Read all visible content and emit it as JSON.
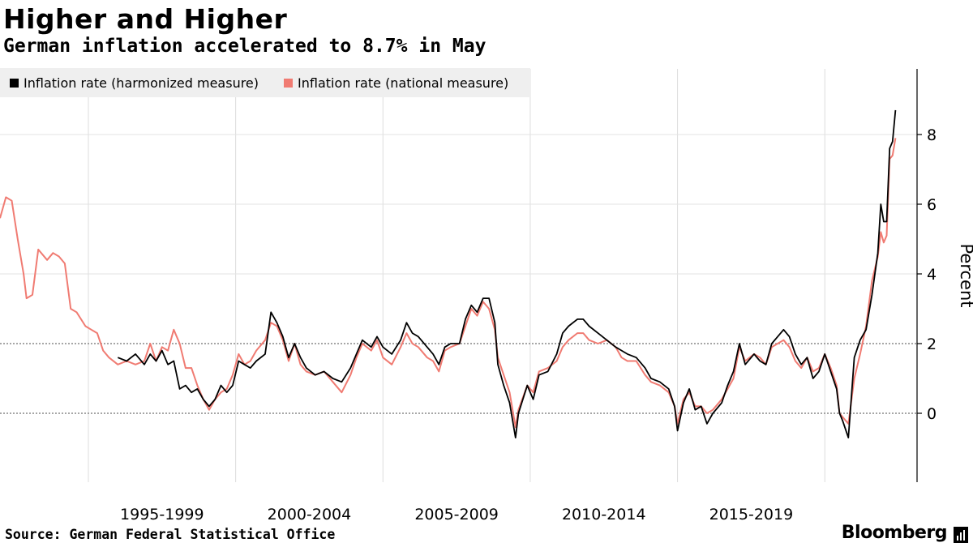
{
  "chart_data": {
    "type": "line",
    "title": "Higher and Higher",
    "subtitle": "German inflation accelerated to 8.7% in May",
    "ylabel": "Percent",
    "ylim": [
      -2,
      10
    ],
    "xlim": [
      1992.0,
      2022.6
    ],
    "yticks": [
      0,
      2,
      4,
      6,
      8
    ],
    "ytick_labels": [
      "0",
      "2",
      "4",
      "6",
      "8"
    ],
    "x_period_labels": [
      {
        "label": "1995-1999",
        "x": 1997.5
      },
      {
        "label": "2000-2004",
        "x": 2002.5
      },
      {
        "label": "2005-2009",
        "x": 2007.5
      },
      {
        "label": "2010-2014",
        "x": 2012.5
      },
      {
        "label": "2015-2019",
        "x": 2017.5
      }
    ],
    "x_gridlines": [
      1995,
      2000,
      2005,
      2010,
      2015,
      2020
    ],
    "grid": true,
    "legend_position": "top-left",
    "series": [
      {
        "name": "Inflation rate (harmonized measure)",
        "color": "#000000",
        "points": [
          [
            1996.0,
            1.6
          ],
          [
            1996.3,
            1.5
          ],
          [
            1996.6,
            1.7
          ],
          [
            1996.9,
            1.4
          ],
          [
            1997.1,
            1.7
          ],
          [
            1997.3,
            1.5
          ],
          [
            1997.5,
            1.8
          ],
          [
            1997.7,
            1.4
          ],
          [
            1997.9,
            1.5
          ],
          [
            1998.1,
            0.7
          ],
          [
            1998.3,
            0.8
          ],
          [
            1998.5,
            0.6
          ],
          [
            1998.7,
            0.7
          ],
          [
            1998.9,
            0.4
          ],
          [
            1999.1,
            0.2
          ],
          [
            1999.3,
            0.4
          ],
          [
            1999.5,
            0.8
          ],
          [
            1999.7,
            0.6
          ],
          [
            1999.9,
            0.8
          ],
          [
            2000.1,
            1.5
          ],
          [
            2000.3,
            1.4
          ],
          [
            2000.5,
            1.3
          ],
          [
            2000.7,
            1.5
          ],
          [
            2001.0,
            1.7
          ],
          [
            2001.2,
            2.9
          ],
          [
            2001.4,
            2.6
          ],
          [
            2001.6,
            2.2
          ],
          [
            2001.8,
            1.6
          ],
          [
            2002.0,
            2.0
          ],
          [
            2002.2,
            1.6
          ],
          [
            2002.4,
            1.3
          ],
          [
            2002.7,
            1.1
          ],
          [
            2003.0,
            1.2
          ],
          [
            2003.3,
            1.0
          ],
          [
            2003.6,
            0.9
          ],
          [
            2003.9,
            1.3
          ],
          [
            2004.1,
            1.7
          ],
          [
            2004.3,
            2.1
          ],
          [
            2004.6,
            1.9
          ],
          [
            2004.8,
            2.2
          ],
          [
            2005.0,
            1.9
          ],
          [
            2005.3,
            1.7
          ],
          [
            2005.6,
            2.1
          ],
          [
            2005.8,
            2.6
          ],
          [
            2006.0,
            2.3
          ],
          [
            2006.2,
            2.2
          ],
          [
            2006.5,
            1.9
          ],
          [
            2006.7,
            1.7
          ],
          [
            2006.9,
            1.4
          ],
          [
            2007.1,
            1.9
          ],
          [
            2007.3,
            2.0
          ],
          [
            2007.6,
            2.0
          ],
          [
            2007.8,
            2.7
          ],
          [
            2008.0,
            3.1
          ],
          [
            2008.2,
            2.9
          ],
          [
            2008.4,
            3.3
          ],
          [
            2008.6,
            3.3
          ],
          [
            2008.8,
            2.6
          ],
          [
            2008.9,
            1.4
          ],
          [
            2009.1,
            0.8
          ],
          [
            2009.3,
            0.3
          ],
          [
            2009.5,
            -0.7
          ],
          [
            2009.6,
            0.0
          ],
          [
            2009.9,
            0.8
          ],
          [
            2010.1,
            0.4
          ],
          [
            2010.3,
            1.1
          ],
          [
            2010.6,
            1.2
          ],
          [
            2010.9,
            1.7
          ],
          [
            2011.1,
            2.3
          ],
          [
            2011.3,
            2.5
          ],
          [
            2011.6,
            2.7
          ],
          [
            2011.8,
            2.7
          ],
          [
            2012.0,
            2.5
          ],
          [
            2012.3,
            2.3
          ],
          [
            2012.6,
            2.1
          ],
          [
            2012.9,
            1.9
          ],
          [
            2013.1,
            1.8
          ],
          [
            2013.3,
            1.7
          ],
          [
            2013.6,
            1.6
          ],
          [
            2013.9,
            1.3
          ],
          [
            2014.1,
            1.0
          ],
          [
            2014.4,
            0.9
          ],
          [
            2014.7,
            0.7
          ],
          [
            2014.9,
            0.2
          ],
          [
            2015.0,
            -0.5
          ],
          [
            2015.2,
            0.3
          ],
          [
            2015.4,
            0.7
          ],
          [
            2015.6,
            0.1
          ],
          [
            2015.8,
            0.2
          ],
          [
            2016.0,
            -0.3
          ],
          [
            2016.2,
            0.0
          ],
          [
            2016.5,
            0.3
          ],
          [
            2016.7,
            0.8
          ],
          [
            2016.9,
            1.2
          ],
          [
            2017.1,
            2.0
          ],
          [
            2017.3,
            1.4
          ],
          [
            2017.6,
            1.7
          ],
          [
            2017.8,
            1.5
          ],
          [
            2018.0,
            1.4
          ],
          [
            2018.2,
            2.0
          ],
          [
            2018.4,
            2.2
          ],
          [
            2018.6,
            2.4
          ],
          [
            2018.8,
            2.2
          ],
          [
            2019.0,
            1.7
          ],
          [
            2019.2,
            1.4
          ],
          [
            2019.4,
            1.6
          ],
          [
            2019.6,
            1.0
          ],
          [
            2019.8,
            1.2
          ],
          [
            2020.0,
            1.7
          ],
          [
            2020.2,
            1.2
          ],
          [
            2020.4,
            0.7
          ],
          [
            2020.5,
            0.0
          ],
          [
            2020.6,
            -0.2
          ],
          [
            2020.8,
            -0.7
          ],
          [
            2021.0,
            1.6
          ],
          [
            2021.2,
            2.1
          ],
          [
            2021.4,
            2.4
          ],
          [
            2021.6,
            3.4
          ],
          [
            2021.8,
            4.6
          ],
          [
            2021.9,
            6.0
          ],
          [
            2022.0,
            5.5
          ],
          [
            2022.1,
            5.5
          ],
          [
            2022.2,
            7.6
          ],
          [
            2022.3,
            7.8
          ],
          [
            2022.4,
            8.7
          ]
        ]
      },
      {
        "name": "Inflation rate (national measure)",
        "color": "#f07b72",
        "points": [
          [
            1992.0,
            5.6
          ],
          [
            1992.2,
            6.2
          ],
          [
            1992.4,
            6.1
          ],
          [
            1992.6,
            5.0
          ],
          [
            1992.8,
            4.0
          ],
          [
            1992.9,
            3.3
          ],
          [
            1993.1,
            3.4
          ],
          [
            1993.3,
            4.7
          ],
          [
            1993.6,
            4.4
          ],
          [
            1993.8,
            4.6
          ],
          [
            1994.0,
            4.5
          ],
          [
            1994.2,
            4.3
          ],
          [
            1994.4,
            3.0
          ],
          [
            1994.6,
            2.9
          ],
          [
            1994.9,
            2.5
          ],
          [
            1995.1,
            2.4
          ],
          [
            1995.3,
            2.3
          ],
          [
            1995.5,
            1.8
          ],
          [
            1995.7,
            1.6
          ],
          [
            1996.0,
            1.4
          ],
          [
            1996.3,
            1.5
          ],
          [
            1996.6,
            1.4
          ],
          [
            1996.9,
            1.5
          ],
          [
            1997.1,
            2.0
          ],
          [
            1997.3,
            1.5
          ],
          [
            1997.5,
            1.9
          ],
          [
            1997.7,
            1.8
          ],
          [
            1997.9,
            2.4
          ],
          [
            1998.1,
            2.0
          ],
          [
            1998.3,
            1.3
          ],
          [
            1998.5,
            1.3
          ],
          [
            1998.7,
            0.8
          ],
          [
            1998.9,
            0.4
          ],
          [
            1999.1,
            0.1
          ],
          [
            1999.3,
            0.4
          ],
          [
            1999.5,
            0.6
          ],
          [
            1999.7,
            0.7
          ],
          [
            1999.9,
            1.1
          ],
          [
            2000.1,
            1.7
          ],
          [
            2000.3,
            1.4
          ],
          [
            2000.5,
            1.5
          ],
          [
            2000.7,
            1.8
          ],
          [
            2001.0,
            2.1
          ],
          [
            2001.2,
            2.6
          ],
          [
            2001.4,
            2.5
          ],
          [
            2001.6,
            2.1
          ],
          [
            2001.8,
            1.5
          ],
          [
            2002.0,
            2.0
          ],
          [
            2002.2,
            1.4
          ],
          [
            2002.4,
            1.2
          ],
          [
            2002.7,
            1.1
          ],
          [
            2003.0,
            1.2
          ],
          [
            2003.3,
            0.9
          ],
          [
            2003.6,
            0.6
          ],
          [
            2003.9,
            1.1
          ],
          [
            2004.1,
            1.6
          ],
          [
            2004.3,
            2.0
          ],
          [
            2004.6,
            1.8
          ],
          [
            2004.8,
            2.1
          ],
          [
            2005.0,
            1.6
          ],
          [
            2005.3,
            1.4
          ],
          [
            2005.6,
            1.9
          ],
          [
            2005.8,
            2.3
          ],
          [
            2006.0,
            2.0
          ],
          [
            2006.2,
            1.9
          ],
          [
            2006.5,
            1.6
          ],
          [
            2006.7,
            1.5
          ],
          [
            2006.9,
            1.2
          ],
          [
            2007.1,
            1.8
          ],
          [
            2007.3,
            1.9
          ],
          [
            2007.6,
            2.0
          ],
          [
            2007.8,
            2.5
          ],
          [
            2008.0,
            3.0
          ],
          [
            2008.2,
            2.8
          ],
          [
            2008.4,
            3.2
          ],
          [
            2008.6,
            3.0
          ],
          [
            2008.8,
            2.4
          ],
          [
            2008.9,
            1.6
          ],
          [
            2009.1,
            1.1
          ],
          [
            2009.3,
            0.6
          ],
          [
            2009.5,
            -0.4
          ],
          [
            2009.6,
            0.1
          ],
          [
            2009.9,
            0.8
          ],
          [
            2010.1,
            0.6
          ],
          [
            2010.3,
            1.2
          ],
          [
            2010.6,
            1.3
          ],
          [
            2010.9,
            1.5
          ],
          [
            2011.1,
            1.9
          ],
          [
            2011.3,
            2.1
          ],
          [
            2011.6,
            2.3
          ],
          [
            2011.8,
            2.3
          ],
          [
            2012.0,
            2.1
          ],
          [
            2012.3,
            2.0
          ],
          [
            2012.6,
            2.1
          ],
          [
            2012.9,
            1.9
          ],
          [
            2013.1,
            1.6
          ],
          [
            2013.3,
            1.5
          ],
          [
            2013.6,
            1.5
          ],
          [
            2013.9,
            1.1
          ],
          [
            2014.1,
            0.9
          ],
          [
            2014.4,
            0.8
          ],
          [
            2014.7,
            0.6
          ],
          [
            2014.9,
            0.2
          ],
          [
            2015.0,
            -0.3
          ],
          [
            2015.2,
            0.4
          ],
          [
            2015.4,
            0.6
          ],
          [
            2015.6,
            0.2
          ],
          [
            2015.8,
            0.2
          ],
          [
            2016.0,
            0.0
          ],
          [
            2016.2,
            0.1
          ],
          [
            2016.5,
            0.4
          ],
          [
            2016.7,
            0.7
          ],
          [
            2016.9,
            1.0
          ],
          [
            2017.1,
            1.9
          ],
          [
            2017.3,
            1.5
          ],
          [
            2017.6,
            1.7
          ],
          [
            2017.8,
            1.6
          ],
          [
            2018.0,
            1.4
          ],
          [
            2018.2,
            1.9
          ],
          [
            2018.4,
            2.0
          ],
          [
            2018.6,
            2.1
          ],
          [
            2018.8,
            1.9
          ],
          [
            2019.0,
            1.5
          ],
          [
            2019.2,
            1.3
          ],
          [
            2019.4,
            1.6
          ],
          [
            2019.6,
            1.2
          ],
          [
            2019.8,
            1.3
          ],
          [
            2020.0,
            1.7
          ],
          [
            2020.2,
            1.3
          ],
          [
            2020.4,
            0.8
          ],
          [
            2020.5,
            0.0
          ],
          [
            2020.6,
            -0.1
          ],
          [
            2020.8,
            -0.3
          ],
          [
            2021.0,
            1.0
          ],
          [
            2021.2,
            1.7
          ],
          [
            2021.4,
            2.5
          ],
          [
            2021.6,
            3.8
          ],
          [
            2021.8,
            4.5
          ],
          [
            2021.9,
            5.2
          ],
          [
            2022.0,
            4.9
          ],
          [
            2022.1,
            5.1
          ],
          [
            2022.2,
            7.3
          ],
          [
            2022.3,
            7.4
          ],
          [
            2022.4,
            7.9
          ]
        ]
      }
    ]
  },
  "footer": {
    "source": "Source: German Federal Statistical Office",
    "brand": "Bloomberg"
  }
}
